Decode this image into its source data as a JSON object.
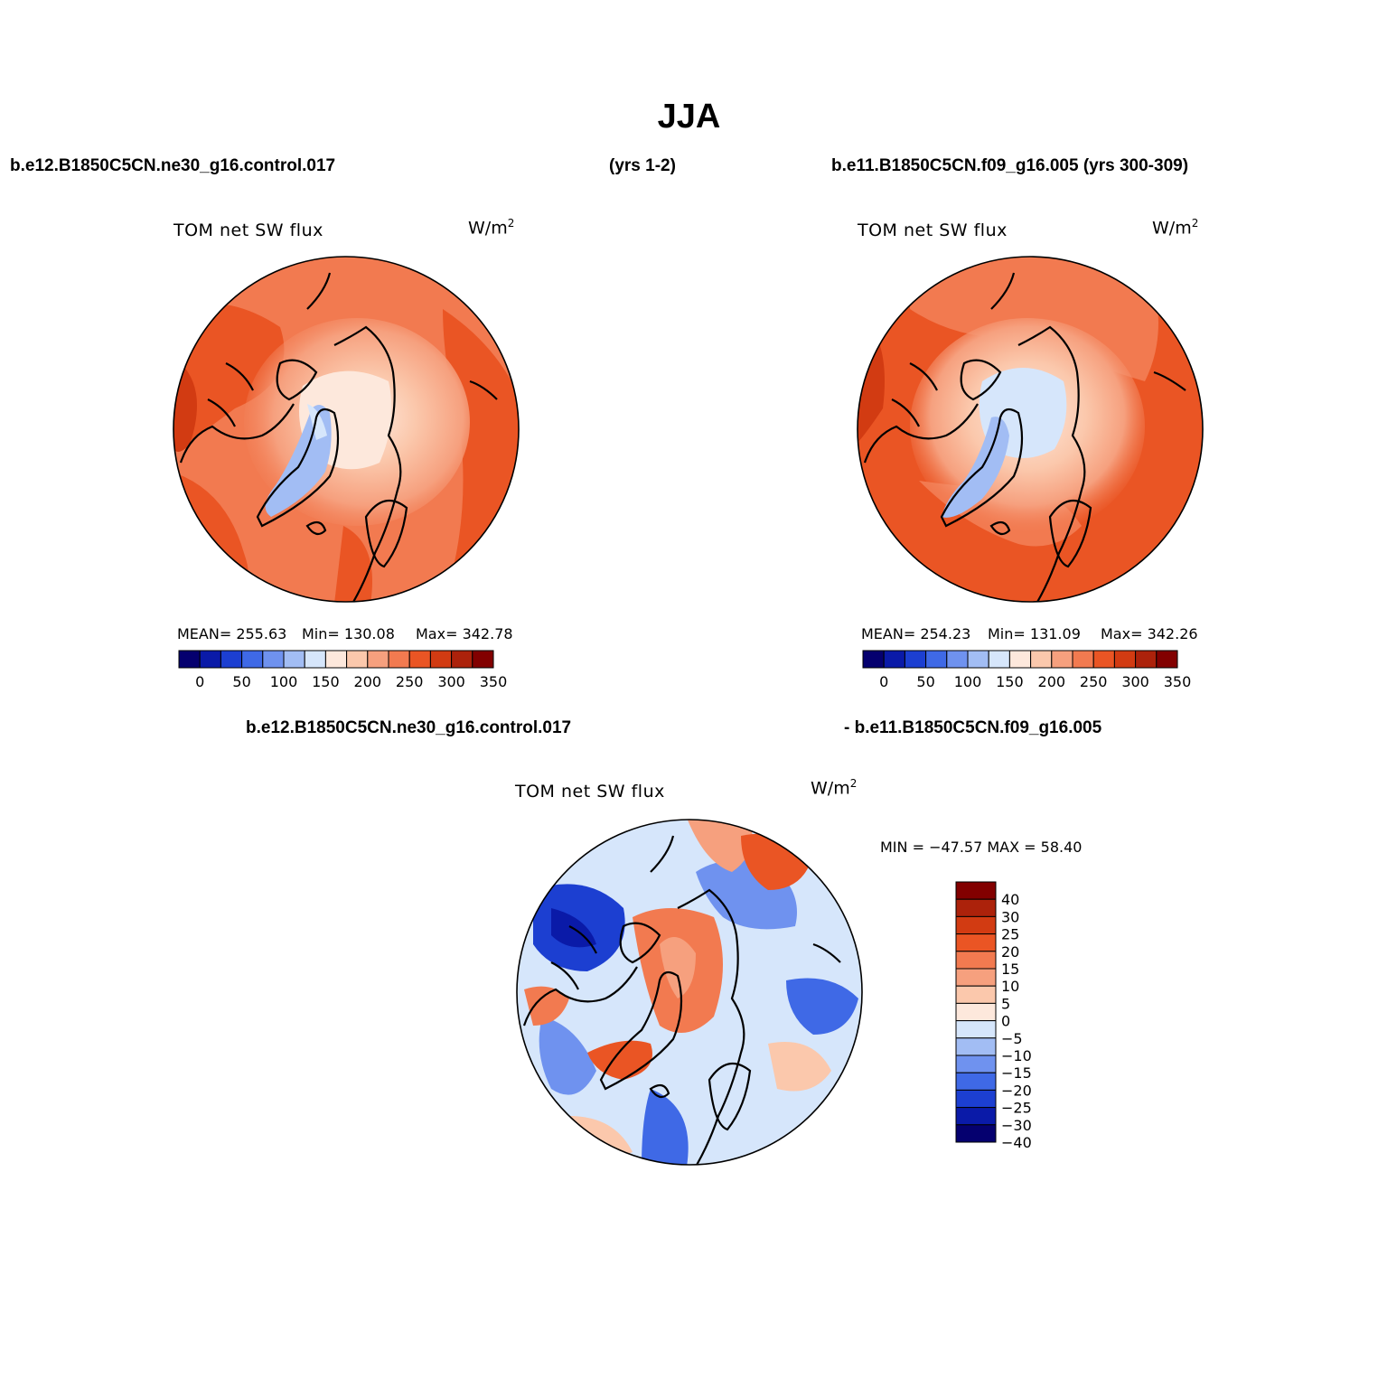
{
  "title": "JJA",
  "headers": {
    "case1": "b.e12.B1850C5CN.ne30_g16.control.017",
    "case1_years": "(yrs 1-2)",
    "case2": "b.e11.B1850C5CN.f09_g16.005 (yrs 300-309)",
    "diff_left": "b.e12.B1850C5CN.ne30_g16.control.017",
    "diff_right": "- b.e11.B1850C5CN.f09_g16.005"
  },
  "panels": [
    {
      "id": "case1",
      "variable": "TOM net SW flux",
      "units": "W/m",
      "units_exp": "2",
      "stats": [
        "MEAN= 255.63",
        "Min= 130.08",
        "Max= 342.78"
      ]
    },
    {
      "id": "case2",
      "variable": "TOM net SW flux",
      "units": "W/m",
      "units_exp": "2",
      "stats": [
        "MEAN= 254.23",
        "Min= 131.09",
        "Max= 342.26"
      ]
    },
    {
      "id": "diff",
      "variable": "TOM net SW flux",
      "units": "W/m",
      "units_exp": "2",
      "stats": [
        "MIN = −47.57 MAX =  58.40"
      ]
    }
  ],
  "colorbar_abs": {
    "labels": [
      "0",
      "50",
      "100",
      "150",
      "200",
      "250",
      "300",
      "350"
    ],
    "colors": [
      "#05006f",
      "#0a1aa8",
      "#1c3fd1",
      "#3f69e6",
      "#6f92ef",
      "#a2bdf4",
      "#d6e6fb",
      "#fde8dc",
      "#fbc8ac",
      "#f6a07e",
      "#f27a50",
      "#ea5524",
      "#d23b12",
      "#ac220b",
      "#820000"
    ]
  },
  "colorbar_diff": {
    "labels": [
      "40",
      "30",
      "25",
      "20",
      "15",
      "10",
      "5",
      "0",
      "−5",
      "−10",
      "−15",
      "−20",
      "−25",
      "−30",
      "−40"
    ],
    "colors": [
      "#820000",
      "#ac220b",
      "#d23b12",
      "#ea5524",
      "#f27a50",
      "#f6a07e",
      "#fbc8ac",
      "#fde8dc",
      "#d6e6fb",
      "#a2bdf4",
      "#6f92ef",
      "#3f69e6",
      "#1c3fd1",
      "#0a1aa8",
      "#05006f"
    ]
  }
}
